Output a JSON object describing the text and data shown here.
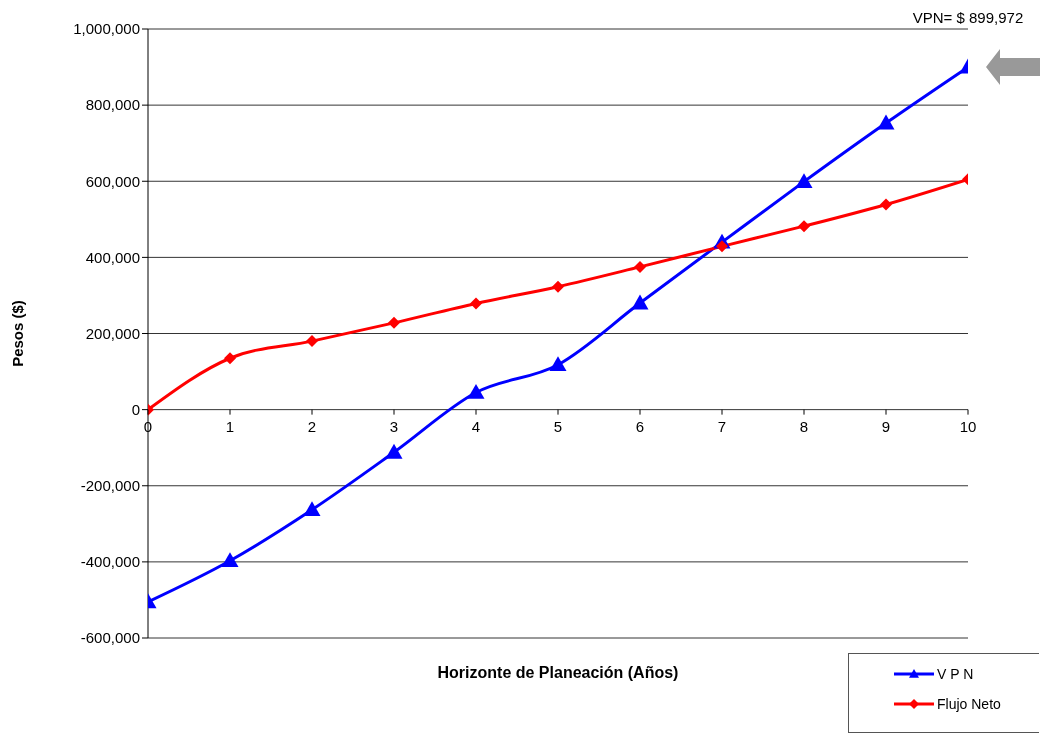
{
  "chart_data": {
    "type": "line",
    "xlabel": "Horizonte de Planeación (Años)",
    "ylabel": "Pesos ($)",
    "x": [
      0,
      1,
      2,
      3,
      4,
      5,
      6,
      7,
      8,
      9,
      10
    ],
    "series": [
      {
        "name": "V P N",
        "color": "#0000ff",
        "marker": "triangle",
        "values": [
          -505000,
          -397000,
          -263000,
          -112000,
          45000,
          118000,
          280000,
          440000,
          599000,
          753000,
          899972
        ]
      },
      {
        "name": "Flujo Neto",
        "color": "#ff0000",
        "marker": "diamond",
        "values": [
          0,
          135000,
          180000,
          228000,
          279000,
          323000,
          375000,
          429000,
          482000,
          539000,
          605000
        ]
      }
    ],
    "xlim": [
      0,
      10
    ],
    "xticks": [
      0,
      1,
      2,
      3,
      4,
      5,
      6,
      7,
      8,
      9,
      10
    ],
    "ylim": [
      -600000,
      1000000
    ],
    "yticks": [
      {
        "value": -600000,
        "label": "-600,000"
      },
      {
        "value": -400000,
        "label": "-400,000"
      },
      {
        "value": -200000,
        "label": "-200,000"
      },
      0,
      {
        "value": 200000,
        "label": "200,000"
      },
      {
        "value": 400000,
        "label": "400,000"
      },
      {
        "value": 600000,
        "label": "600,000"
      },
      {
        "value": 800000,
        "label": "800,000"
      },
      {
        "value": 1000000,
        "label": "1,000,000"
      }
    ],
    "grid": "y",
    "legend": "bottom right",
    "line_style": "solid",
    "annotations": [
      {
        "text": "VPN= $ 899,972",
        "x": 10,
        "y": 899972
      }
    ]
  }
}
